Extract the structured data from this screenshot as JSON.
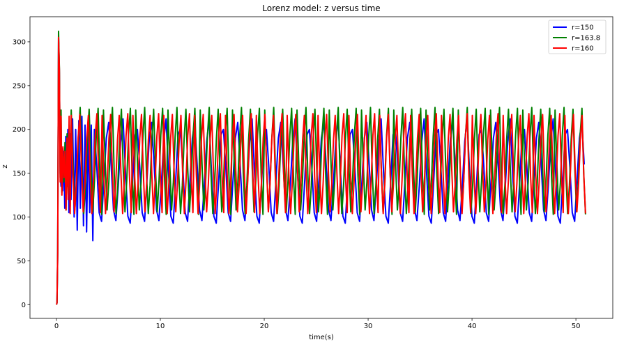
{
  "chart_data": {
    "type": "line",
    "title": "Lorenz model: z versus time",
    "xlabel": "time(s)",
    "ylabel": "z",
    "xlim": [
      -2.55,
      53.55
    ],
    "ylim": [
      -15.7,
      328.6
    ],
    "xticks": [
      0,
      10,
      20,
      30,
      40,
      50
    ],
    "yticks": [
      0,
      50,
      100,
      150,
      200,
      250,
      300
    ],
    "grid": false,
    "legend_position": "top-right",
    "series": [
      {
        "name": "r=150",
        "color": "#0000ff",
        "x": [
          0,
          0.05,
          0.12,
          0.2,
          0.28,
          0.36,
          0.44,
          0.52,
          0.6,
          0.7,
          0.8,
          0.9,
          1.0,
          1.1,
          1.2,
          1.3,
          1.4,
          1.55,
          1.7,
          1.85,
          2.0,
          2.15,
          2.3,
          2.45,
          2.6,
          2.75,
          2.9,
          3.05,
          3.2,
          3.35,
          3.5,
          3.65
        ],
        "values": [
          0,
          2,
          60,
          305,
          265,
          150,
          135,
          178,
          130,
          175,
          110,
          192,
          135,
          200,
          105,
          195,
          120,
          212,
          100,
          200,
          85,
          210,
          110,
          215,
          90,
          205,
          83,
          200,
          105,
          205,
          73,
          200
        ],
        "cycle": {
          "from": 3.65,
          "to": 51.0,
          "period": 0.46,
          "values": [
            200,
            157,
            105,
            95,
            142,
            190,
            208,
            160,
            108,
            96,
            136,
            186,
            212,
            152,
            101,
            93,
            140,
            194
          ]
        }
      },
      {
        "name": "r=163.8",
        "color": "#008000",
        "x": [
          0,
          0.05,
          0.12,
          0.2,
          0.28,
          0.36,
          0.44,
          0.52,
          0.62,
          0.72,
          0.82,
          0.92,
          1.02,
          1.12,
          1.22,
          1.32,
          1.42
        ],
        "values": [
          0,
          2,
          60,
          312,
          270,
          145,
          222,
          128,
          178,
          140,
          185,
          108,
          195,
          128,
          205,
          112,
          222
        ],
        "cycle": {
          "from": 1.42,
          "to": 51.0,
          "period": 0.345,
          "values": [
            222,
            160,
            108,
            140,
            192,
            225,
            150,
            104,
            136,
            189,
            223,
            156,
            106,
            142,
            194,
            224,
            148,
            103
          ]
        }
      },
      {
        "name": "r=160",
        "color": "#ff0000",
        "x": [
          0,
          0.05,
          0.12,
          0.2,
          0.28,
          0.36,
          0.44,
          0.52,
          0.62,
          0.72,
          0.82,
          0.92,
          1.02,
          1.12,
          1.22,
          1.32,
          1.42
        ],
        "values": [
          0,
          2,
          60,
          305,
          268,
          140,
          215,
          125,
          180,
          145,
          175,
          108,
          190,
          120,
          215,
          104,
          216
        ],
        "cycle": {
          "from": 1.42,
          "to": 51.0,
          "period": 0.33,
          "values": [
            216,
            148,
            104,
            140,
            190,
            217,
            154,
            106,
            138,
            188,
            216,
            150,
            104,
            142,
            193,
            218,
            146,
            105
          ]
        }
      }
    ]
  }
}
